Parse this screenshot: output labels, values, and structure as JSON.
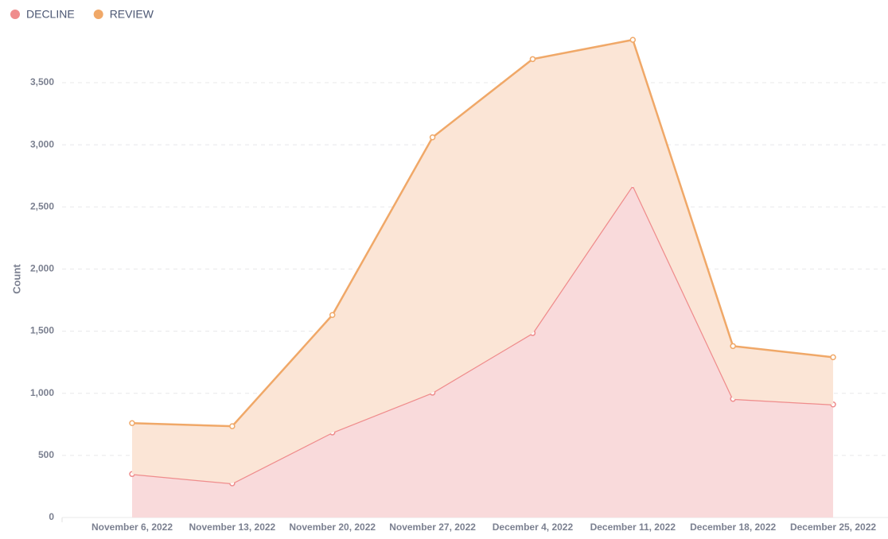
{
  "chart_data": {
    "type": "area",
    "stacked": true,
    "y_label": "Count",
    "categories": [
      "November 6, 2022",
      "November 13, 2022",
      "November 20, 2022",
      "November 27, 2022",
      "December 4, 2022",
      "December 11, 2022",
      "December 18, 2022",
      "December 25, 2022"
    ],
    "series": [
      {
        "name": "DECLINE",
        "color": "#ef8c8c",
        "values": [
          350,
          275,
          685,
          1005,
          1485,
          2675,
          955,
          910
        ]
      },
      {
        "name": "REVIEW",
        "color": "#f0a868",
        "values": [
          410,
          460,
          945,
          2055,
          2205,
          1170,
          425,
          380
        ]
      }
    ],
    "ylim": [
      0,
      3900
    ],
    "yticks": [
      0,
      500,
      {
        "value": 1000,
        "label": "1,000"
      },
      {
        "value": 1500,
        "label": "1,500"
      },
      {
        "value": 2000,
        "label": "2,000"
      },
      {
        "value": 2500,
        "label": "2,500"
      },
      {
        "value": 3000,
        "label": "3,000"
      },
      {
        "value": 3500,
        "label": "3,500"
      }
    ],
    "grid": true,
    "legend": "top-left"
  }
}
